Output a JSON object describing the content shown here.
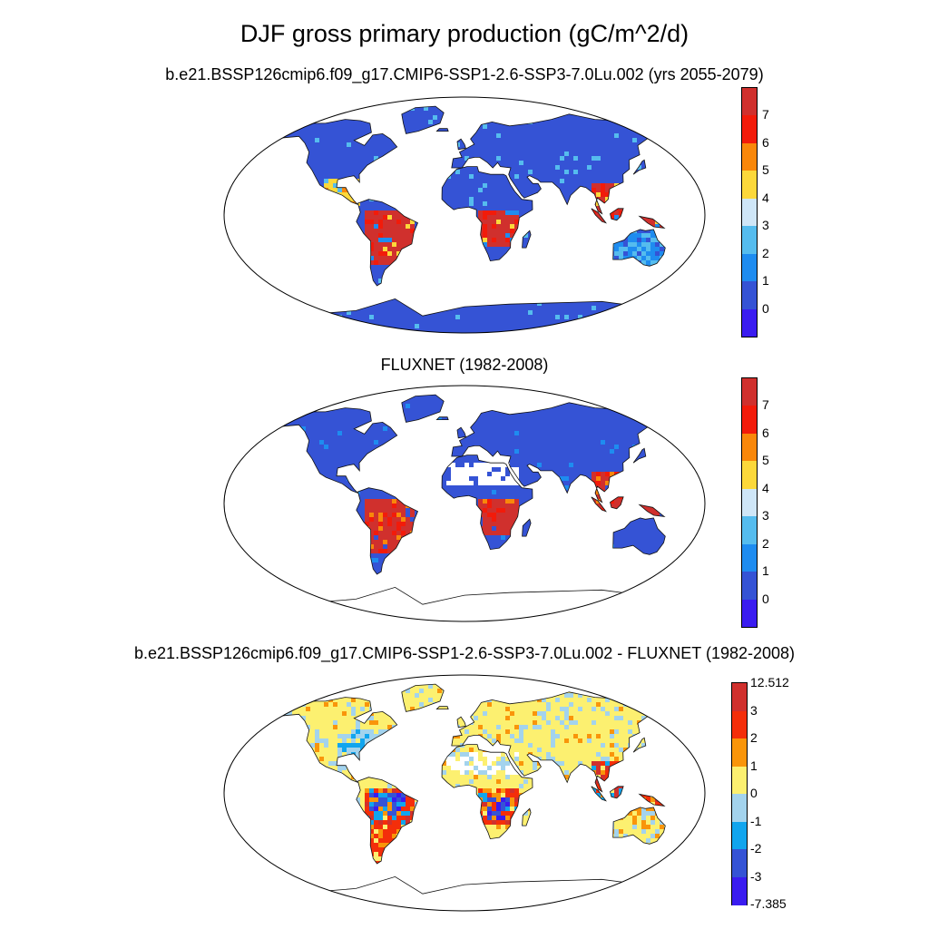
{
  "title": "DJF gross primary production (gC/m^2/d)",
  "panels": [
    {
      "id": "model",
      "subtitle": "b.e21.BSSP126cmip6.f09_g17.CMIP6-SSP1-2.6-SSP3-7.0Lu.002 (yrs 2055-2079)"
    },
    {
      "id": "obs",
      "subtitle": "FLUXNET (1982-2008)"
    },
    {
      "id": "diff",
      "subtitle": "b.e21.BSSP126cmip6.f09_g17.CMIP6-SSP1-2.6-SSP3-7.0Lu.002 - FLUXNET (1982-2008)"
    }
  ],
  "colorbars": {
    "gpp": {
      "colors": [
        "#3a1cf0",
        "#3553d5",
        "#1e8cf0",
        "#55bcee",
        "#cfe6f7",
        "#fcd83a",
        "#f9870a",
        "#f21b0a",
        "#d0302d"
      ],
      "labels": [
        "0",
        "1",
        "2",
        "3",
        "4",
        "5",
        "6",
        "7"
      ]
    },
    "diff": {
      "colors": [
        "#3a1cf0",
        "#3553d5",
        "#11a5ee",
        "#a3d3ed",
        "#fcf070",
        "#f9950a",
        "#f42e0a",
        "#d0302d"
      ],
      "labels": [
        "-7.385",
        "-3",
        "-2",
        "-1",
        "0",
        "1",
        "2",
        "3",
        "12.512"
      ]
    }
  }
}
